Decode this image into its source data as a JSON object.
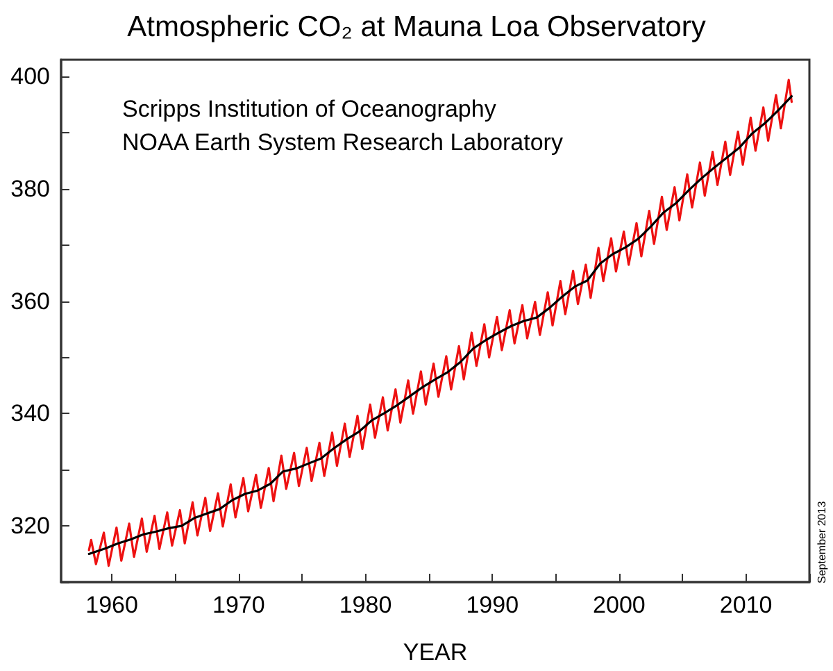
{
  "chart_data": {
    "type": "line",
    "title": "Atmospheric CO₂ at Mauna Loa Observatory",
    "xlabel": "YEAR",
    "annotations": [
      "Scripps Institution of Oceanography",
      "NOAA Earth System Research Laboratory",
      "September 2013"
    ],
    "xlim": [
      1956,
      2015
    ],
    "ylim": [
      310,
      403
    ],
    "xticks": [
      1960,
      {
        "value": 1965,
        "label": null
      },
      1970,
      {
        "value": 1975,
        "label": null
      },
      1980,
      {
        "value": 1985,
        "label": null
      },
      1990,
      {
        "value": 1995,
        "label": null
      },
      2000,
      {
        "value": 2005,
        "label": null
      },
      2010,
      {
        "value": 2015,
        "label": null
      }
    ],
    "yticks": [
      {
        "value": 310,
        "label": null
      },
      320,
      {
        "value": 330,
        "label": null
      },
      340,
      {
        "value": 350,
        "label": null
      },
      360,
      {
        "value": 370,
        "label": null
      },
      380,
      {
        "value": 390,
        "label": null
      },
      400
    ],
    "marker": "none",
    "line_style": "solid",
    "series": [
      {
        "color": "#ee1111",
        "x": [
          1958.2,
          1958.37,
          1958.75,
          1959.37,
          1959.75,
          1960.37,
          1960.75,
          1961.37,
          1961.75,
          1962.37,
          1962.75,
          1963.37,
          1963.75,
          1964.37,
          1964.75,
          1965.37,
          1965.75,
          1966.37,
          1966.75,
          1967.37,
          1967.75,
          1968.37,
          1968.75,
          1969.37,
          1969.75,
          1970.37,
          1970.75,
          1971.37,
          1971.75,
          1972.37,
          1972.75,
          1973.37,
          1973.75,
          1974.37,
          1974.75,
          1975.37,
          1975.75,
          1976.37,
          1976.75,
          1977.37,
          1977.75,
          1978.37,
          1978.75,
          1979.37,
          1979.75,
          1980.37,
          1980.75,
          1981.37,
          1981.75,
          1982.37,
          1982.75,
          1983.37,
          1983.75,
          1984.37,
          1984.75,
          1985.37,
          1985.75,
          1986.37,
          1986.75,
          1987.37,
          1987.75,
          1988.37,
          1988.75,
          1989.37,
          1989.75,
          1990.37,
          1990.75,
          1991.37,
          1991.75,
          1992.37,
          1992.75,
          1993.37,
          1993.75,
          1994.37,
          1994.75,
          1995.37,
          1995.75,
          1996.37,
          1996.75,
          1997.37,
          1997.75,
          1998.37,
          1998.75,
          1999.37,
          1999.75,
          2000.37,
          2000.75,
          2001.37,
          2001.75,
          2002.37,
          2002.75,
          2003.37,
          2003.75,
          2004.37,
          2004.75,
          2005.37,
          2005.75,
          2006.37,
          2006.75,
          2007.37,
          2007.75,
          2008.37,
          2008.75,
          2009.37,
          2009.75,
          2010.37,
          2010.75,
          2011.37,
          2011.75,
          2012.37,
          2012.75,
          2013.37,
          2013.6
        ],
        "values": [
          315.7,
          317.5,
          313.2,
          318.8,
          312.9,
          319.7,
          313.8,
          320.4,
          314.5,
          321.3,
          315.4,
          321.8,
          315.9,
          322.4,
          316.5,
          322.8,
          316.9,
          324.2,
          318.3,
          325.0,
          319.1,
          325.8,
          319.9,
          327.4,
          321.5,
          328.5,
          322.6,
          329.1,
          323.2,
          330.3,
          324.4,
          332.5,
          326.6,
          333.0,
          327.1,
          333.9,
          328.0,
          334.8,
          328.9,
          336.6,
          330.7,
          338.2,
          332.3,
          339.6,
          333.7,
          341.6,
          335.7,
          342.9,
          337.0,
          344.3,
          338.4,
          345.9,
          340.0,
          347.5,
          341.6,
          348.9,
          343.0,
          350.2,
          344.3,
          352.0,
          346.1,
          354.4,
          348.5,
          355.9,
          350.0,
          357.2,
          351.3,
          358.4,
          352.5,
          359.3,
          353.4,
          359.9,
          354.0,
          361.6,
          355.7,
          363.6,
          357.7,
          365.4,
          359.5,
          366.5,
          360.6,
          369.5,
          363.6,
          371.2,
          365.3,
          372.4,
          366.5,
          373.9,
          368.0,
          376.1,
          370.2,
          378.6,
          372.7,
          380.3,
          374.4,
          382.6,
          376.7,
          384.7,
          378.8,
          386.6,
          380.7,
          388.4,
          382.5,
          390.2,
          384.3,
          392.7,
          386.8,
          394.5,
          388.6,
          396.7,
          390.8,
          399.4,
          395.5
        ]
      },
      {
        "color": "#000000",
        "x": [
          1958.2,
          1959.5,
          1960.5,
          1961.5,
          1962.5,
          1963.5,
          1964.5,
          1965.5,
          1966.5,
          1967.5,
          1968.5,
          1969.5,
          1970.5,
          1971.5,
          1972.5,
          1973.5,
          1974.5,
          1975.5,
          1976.5,
          1977.5,
          1978.5,
          1979.5,
          1980.5,
          1981.5,
          1982.5,
          1983.5,
          1984.5,
          1985.5,
          1986.5,
          1987.5,
          1988.5,
          1989.5,
          1990.5,
          1991.5,
          1992.5,
          1993.5,
          1994.5,
          1995.5,
          1996.5,
          1997.5,
          1998.5,
          1999.5,
          2000.5,
          2001.5,
          2002.5,
          2003.5,
          2004.5,
          2005.5,
          2006.5,
          2007.5,
          2008.5,
          2009.5,
          2010.5,
          2011.5,
          2012.5,
          2013.6
        ],
        "values": [
          315.0,
          316.0,
          316.9,
          317.6,
          318.5,
          319.0,
          319.6,
          320.0,
          321.4,
          322.2,
          323.0,
          324.6,
          325.7,
          326.3,
          327.5,
          329.7,
          330.2,
          331.1,
          332.0,
          333.8,
          335.4,
          336.8,
          338.8,
          340.1,
          341.5,
          343.1,
          344.7,
          346.1,
          347.4,
          349.2,
          351.6,
          353.1,
          354.4,
          355.6,
          356.5,
          357.1,
          358.8,
          360.8,
          362.6,
          363.7,
          366.7,
          368.4,
          369.6,
          371.1,
          373.3,
          375.8,
          377.5,
          379.8,
          381.9,
          383.8,
          385.6,
          387.4,
          389.9,
          391.7,
          393.9,
          396.5
        ]
      }
    ]
  }
}
